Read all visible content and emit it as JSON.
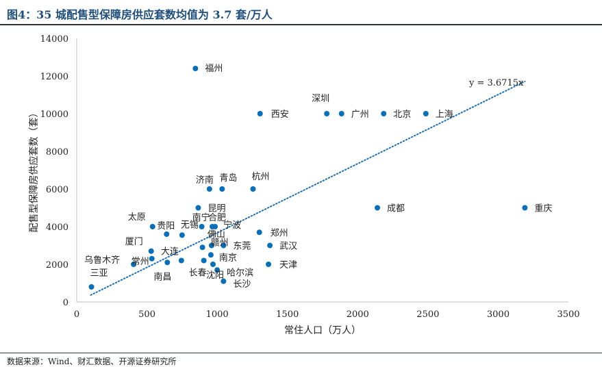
{
  "figure_title": "图4：35 城配售型保障房供应套数均值为 3.7 套/万人",
  "source_note": "数据来源：Wind、财汇数据、开源证券研究所",
  "colors": {
    "marker": "#0b6fb8",
    "trend": "#1f6fb2",
    "title": "#1f4e79"
  },
  "chart_data": {
    "type": "scatter",
    "title": "",
    "xlabel": "常住人口（万人）",
    "ylabel": "配售型保障房供应套数（套）",
    "xlim": [
      0,
      3500
    ],
    "ylim": [
      0,
      14000
    ],
    "xticks": [
      0,
      500,
      1000,
      1500,
      2000,
      2500,
      3000,
      3500
    ],
    "yticks": [
      0,
      2000,
      4000,
      6000,
      8000,
      10000,
      12000,
      14000
    ],
    "grid": false,
    "trendline": {
      "label": "y = 3.6715x",
      "slope": 3.6715,
      "x_range": [
        100,
        3190
      ]
    },
    "points": [
      {
        "name": "福州",
        "x": 845,
        "y": 12400
      },
      {
        "name": "西安",
        "x": 1305,
        "y": 10000
      },
      {
        "name": "深圳",
        "x": 1780,
        "y": 10000
      },
      {
        "name": "广州",
        "x": 1885,
        "y": 10000
      },
      {
        "name": "北京",
        "x": 2185,
        "y": 10000
      },
      {
        "name": "上海",
        "x": 2485,
        "y": 10000
      },
      {
        "name": "济南",
        "x": 945,
        "y": 6000
      },
      {
        "name": "青岛",
        "x": 1035,
        "y": 6000
      },
      {
        "name": "杭州",
        "x": 1255,
        "y": 6000
      },
      {
        "name": "成都",
        "x": 2140,
        "y": 5000
      },
      {
        "name": "重庆",
        "x": 3190,
        "y": 5000
      },
      {
        "name": "昆明",
        "x": 865,
        "y": 5000
      },
      {
        "name": "太原",
        "x": 540,
        "y": 4000
      },
      {
        "name": "贵阳",
        "x": 640,
        "y": 3600
      },
      {
        "name": "无锡",
        "x": 750,
        "y": 3550
      },
      {
        "name": "南宁",
        "x": 890,
        "y": 4000
      },
      {
        "name": "合肥",
        "x": 965,
        "y": 4000
      },
      {
        "name": "宁波",
        "x": 985,
        "y": 4000
      },
      {
        "name": "郑州",
        "x": 1300,
        "y": 3700
      },
      {
        "name": "佛山",
        "x": 960,
        "y": 3000
      },
      {
        "name": "东莞",
        "x": 1045,
        "y": 3000
      },
      {
        "name": "武汉",
        "x": 1375,
        "y": 3000
      },
      {
        "name": "赣州",
        "x": 895,
        "y": 2900
      },
      {
        "name": "厦门",
        "x": 530,
        "y": 2700
      },
      {
        "name": "南京",
        "x": 955,
        "y": 2500
      },
      {
        "name": "大连",
        "x": 745,
        "y": 2200
      },
      {
        "name": "乌鲁木齐",
        "x": 405,
        "y": 2000
      },
      {
        "name": "常州",
        "x": 535,
        "y": 2300
      },
      {
        "name": "南昌",
        "x": 645,
        "y": 2100
      },
      {
        "name": "长春",
        "x": 905,
        "y": 2200
      },
      {
        "name": "沈阳",
        "x": 970,
        "y": 2000
      },
      {
        "name": "哈尔滨",
        "x": 1000,
        "y": 1700
      },
      {
        "name": "天津",
        "x": 1365,
        "y": 2000
      },
      {
        "name": "长沙",
        "x": 1045,
        "y": 1100
      },
      {
        "name": "三亚",
        "x": 105,
        "y": 800
      }
    ]
  }
}
